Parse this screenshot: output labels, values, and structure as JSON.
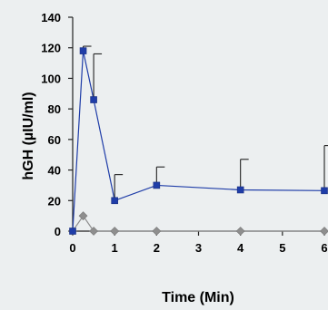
{
  "chart_data": {
    "type": "line",
    "title": "",
    "xlabel": "Time (Min)",
    "ylabel": "hGH (µIU/ml)",
    "xlim": [
      0,
      6
    ],
    "ylim": [
      0,
      140
    ],
    "x_ticks": [
      0,
      1,
      2,
      3,
      4,
      5,
      6
    ],
    "y_ticks": [
      0,
      20,
      40,
      60,
      80,
      100,
      120,
      140
    ],
    "grid": false,
    "legend": "none",
    "series": [
      {
        "color": "#1f3da8",
        "marker": "square",
        "x": [
          0,
          0.25,
          0.5,
          1,
          2,
          4,
          6
        ],
        "y": [
          0,
          118,
          86,
          20,
          30,
          27,
          26.5
        ],
        "error_upper": [
          0,
          121,
          116,
          37,
          42,
          47,
          56
        ]
      },
      {
        "color": "#8e8e8e",
        "marker": "diamond",
        "x": [
          0,
          0.25,
          0.5,
          1,
          2,
          4,
          6
        ],
        "y": [
          0,
          10,
          0,
          0,
          0,
          0,
          0
        ]
      }
    ]
  }
}
